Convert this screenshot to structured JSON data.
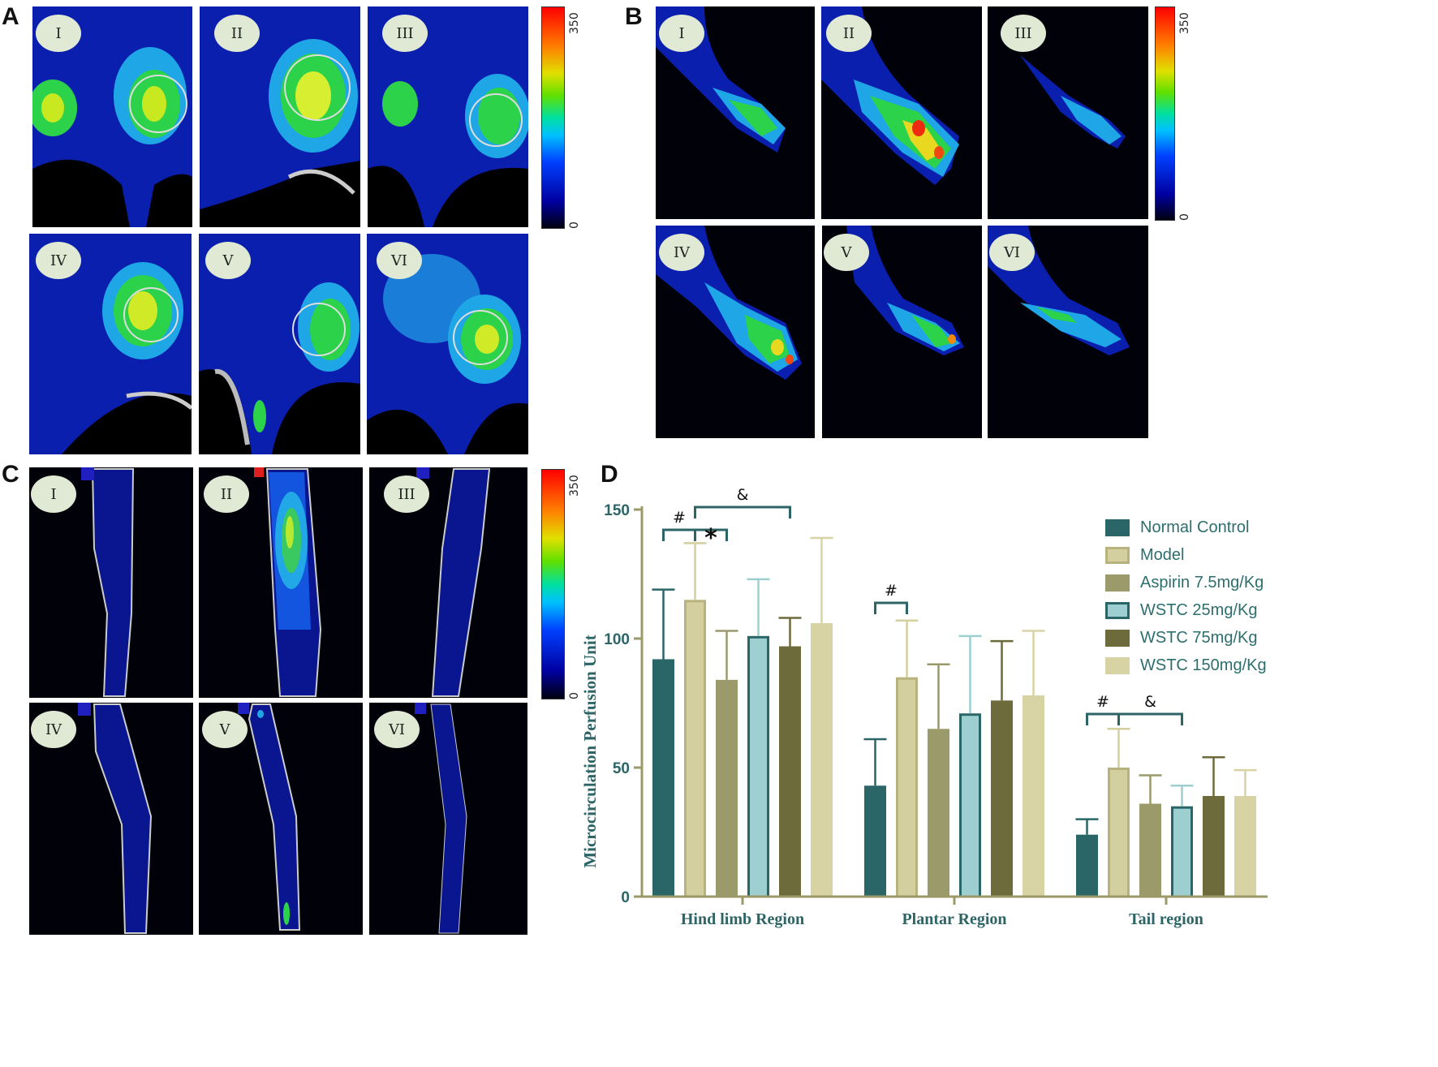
{
  "panels": [
    {
      "letter": "A",
      "numerals": [
        "I",
        "II",
        "III",
        "IV",
        "V",
        "VI"
      ],
      "scale_min": "0",
      "scale_max": "350"
    },
    {
      "letter": "B",
      "numerals": [
        "I",
        "II",
        "III",
        "IV",
        "V",
        "VI"
      ],
      "scale_min": "0",
      "scale_max": "350"
    },
    {
      "letter": "C",
      "numerals": [
        "I",
        "II",
        "III",
        "IV",
        "V",
        "VI"
      ],
      "scale_min": "0",
      "scale_max": "350"
    },
    {
      "letter": "D"
    }
  ],
  "colors": {
    "normal_control": "#2a6668",
    "model": "#d4cf9e",
    "aspirin": "#9a9a6a",
    "wstc25": "#9ecfd0",
    "wstc75": "#6d6a3c",
    "wstc150": "#d8d3a4",
    "axis": "#9c9a68",
    "bracket": "#2d6566"
  },
  "chart_data": {
    "type": "bar",
    "categories": [
      "Hind limb Region",
      "Plantar Region",
      "Tail region"
    ],
    "ylabel": "Microcirculation Perfusion Unit",
    "ylim": [
      0,
      150
    ],
    "yticks": [
      0,
      50,
      100,
      150
    ],
    "legend_position": "top-right",
    "series": [
      {
        "name": "Normal Control",
        "values": [
          92,
          43,
          24
        ],
        "errors": [
          27,
          18,
          6
        ]
      },
      {
        "name": "Model",
        "values": [
          115,
          85,
          50
        ],
        "errors": [
          22,
          22,
          15
        ]
      },
      {
        "name": "Aspirin 7.5mg/Kg",
        "values": [
          84,
          65,
          36
        ],
        "errors": [
          19,
          25,
          11
        ]
      },
      {
        "name": "WSTC 25mg/Kg",
        "values": [
          101,
          71,
          35
        ],
        "errors": [
          22,
          30,
          8
        ]
      },
      {
        "name": "WSTC 75mg/Kg",
        "values": [
          97,
          76,
          39
        ],
        "errors": [
          11,
          23,
          15
        ]
      },
      {
        "name": "WSTC 150mg/Kg",
        "values": [
          106,
          78,
          39
        ],
        "errors": [
          33,
          25,
          10
        ]
      }
    ],
    "annotations": [
      {
        "symbol": "#",
        "category": 0,
        "from_series": 0,
        "to_series": 1
      },
      {
        "symbol": "*",
        "category": 0,
        "from_series": 1,
        "to_series": 2
      },
      {
        "symbol": "&",
        "category": 0,
        "from_series": 1,
        "to_series": 4
      },
      {
        "symbol": "#",
        "category": 1,
        "from_series": 0,
        "to_series": 1
      },
      {
        "symbol": "#",
        "category": 2,
        "from_series": 0,
        "to_series": 1
      },
      {
        "symbol": "&",
        "category": 2,
        "from_series": 1,
        "to_series": 3
      }
    ]
  }
}
